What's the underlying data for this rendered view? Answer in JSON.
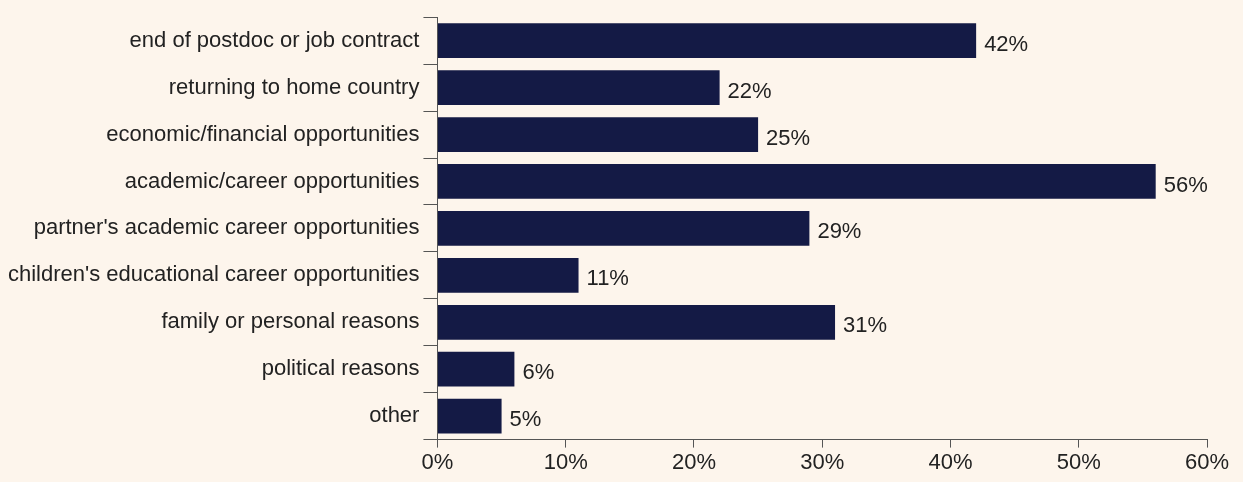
{
  "chart_data": {
    "type": "bar",
    "orientation": "horizontal",
    "categories": [
      "end of postdoc or job contract",
      "returning to home country",
      "economic/financial opportunities",
      "academic/career opportunities",
      "partner's academic career opportunities",
      "children's educational career opportunities",
      "family or personal reasons",
      "political reasons",
      "other"
    ],
    "values": [
      42,
      22,
      25,
      56,
      29,
      11,
      31,
      6,
      5
    ],
    "color": "#141a45",
    "value_labels": [
      "42%",
      "22%",
      "25%",
      "56%",
      "29%",
      "11%",
      "31%",
      "6%",
      "5%"
    ],
    "xlim": [
      0,
      60
    ],
    "xticks": [
      {
        "value": 0,
        "label": "0%"
      },
      {
        "value": 10,
        "label": "10%"
      },
      {
        "value": 20,
        "label": "20%"
      },
      {
        "value": 30,
        "label": "30%"
      },
      {
        "value": 40,
        "label": "40%"
      },
      {
        "value": 50,
        "label": "50%"
      },
      {
        "value": 60,
        "label": "60%"
      }
    ],
    "grid": false,
    "legend": false
  }
}
